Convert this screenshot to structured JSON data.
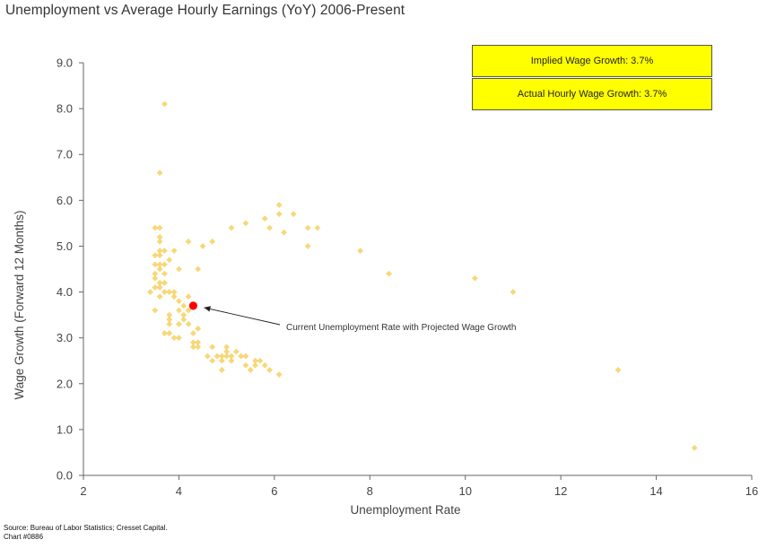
{
  "chart_data": {
    "type": "scatter",
    "title": "Unemployment vs Average Hourly Earnings (YoY) 2006-Present",
    "xlabel": "Unemployment Rate",
    "ylabel": "Wage Growth (Forward 12 Months)",
    "xlim": [
      2,
      16
    ],
    "ylim": [
      0,
      9
    ],
    "xticks": [
      2,
      4,
      6,
      8,
      10,
      12,
      14,
      16
    ],
    "yticks": [
      "0.0",
      "1.0",
      "2.0",
      "3.0",
      "4.0",
      "5.0",
      "6.0",
      "7.0",
      "8.0",
      "9.0"
    ],
    "grid": false,
    "series": [
      {
        "color": "#f5c842",
        "marker": "diamond",
        "points": [
          [
            3.7,
            8.1
          ],
          [
            3.6,
            6.6
          ],
          [
            3.5,
            5.4
          ],
          [
            3.6,
            5.4
          ],
          [
            3.6,
            5.2
          ],
          [
            3.6,
            5.1
          ],
          [
            3.6,
            4.9
          ],
          [
            3.5,
            4.8
          ],
          [
            3.6,
            4.8
          ],
          [
            3.5,
            4.6
          ],
          [
            3.6,
            4.6
          ],
          [
            3.7,
            4.6
          ],
          [
            3.5,
            4.4
          ],
          [
            3.6,
            4.5
          ],
          [
            3.7,
            4.4
          ],
          [
            3.8,
            4.7
          ],
          [
            3.5,
            4.3
          ],
          [
            3.6,
            4.2
          ],
          [
            3.5,
            4.1
          ],
          [
            3.6,
            4.1
          ],
          [
            3.4,
            4.0
          ],
          [
            3.7,
            4.2
          ],
          [
            3.7,
            4.0
          ],
          [
            3.8,
            4.0
          ],
          [
            3.6,
            3.9
          ],
          [
            3.5,
            3.6
          ],
          [
            3.9,
            4.0
          ],
          [
            3.9,
            3.9
          ],
          [
            4.0,
            3.8
          ],
          [
            4.1,
            3.7
          ],
          [
            4.0,
            3.6
          ],
          [
            4.1,
            3.5
          ],
          [
            4.2,
            3.6
          ],
          [
            4.1,
            3.4
          ],
          [
            4.2,
            3.3
          ],
          [
            3.8,
            3.5
          ],
          [
            3.8,
            3.4
          ],
          [
            3.8,
            3.3
          ],
          [
            4.0,
            3.3
          ],
          [
            3.9,
            3.0
          ],
          [
            4.0,
            3.0
          ],
          [
            3.7,
            3.1
          ],
          [
            3.8,
            3.1
          ],
          [
            4.3,
            3.1
          ],
          [
            4.4,
            3.2
          ],
          [
            4.3,
            2.9
          ],
          [
            4.4,
            2.9
          ],
          [
            4.3,
            2.8
          ],
          [
            4.4,
            2.8
          ],
          [
            3.9,
            4.9
          ],
          [
            3.7,
            4.9
          ],
          [
            4.0,
            4.5
          ],
          [
            4.2,
            5.1
          ],
          [
            4.2,
            3.9
          ],
          [
            4.4,
            4.5
          ],
          [
            4.5,
            5.0
          ],
          [
            4.7,
            5.1
          ],
          [
            4.6,
            2.6
          ],
          [
            4.7,
            2.8
          ],
          [
            4.7,
            2.5
          ],
          [
            4.8,
            2.6
          ],
          [
            4.9,
            2.6
          ],
          [
            4.9,
            2.5
          ],
          [
            5.0,
            2.8
          ],
          [
            5.0,
            2.7
          ],
          [
            5.0,
            2.6
          ],
          [
            5.1,
            2.6
          ],
          [
            5.1,
            2.5
          ],
          [
            5.2,
            2.7
          ],
          [
            5.3,
            2.6
          ],
          [
            5.4,
            2.6
          ],
          [
            5.4,
            2.4
          ],
          [
            5.5,
            2.3
          ],
          [
            5.6,
            2.4
          ],
          [
            5.6,
            2.5
          ],
          [
            5.7,
            2.5
          ],
          [
            5.8,
            2.4
          ],
          [
            5.9,
            2.3
          ],
          [
            4.9,
            2.3
          ],
          [
            6.1,
            2.2
          ],
          [
            5.1,
            5.4
          ],
          [
            5.4,
            5.5
          ],
          [
            5.8,
            5.6
          ],
          [
            5.9,
            5.4
          ],
          [
            6.1,
            5.9
          ],
          [
            6.1,
            5.7
          ],
          [
            6.2,
            5.3
          ],
          [
            6.4,
            5.7
          ],
          [
            6.7,
            5.4
          ],
          [
            6.7,
            5.0
          ],
          [
            6.9,
            5.4
          ],
          [
            7.8,
            4.9
          ],
          [
            8.4,
            4.4
          ],
          [
            10.2,
            4.3
          ],
          [
            11.0,
            4.0
          ],
          [
            13.2,
            2.3
          ],
          [
            14.8,
            0.6
          ]
        ]
      }
    ],
    "highlight": {
      "x": 4.3,
      "y": 3.7,
      "color": "#ff0000"
    },
    "annotation": "Current Unemployment Rate with Projected Wage Growth"
  },
  "callouts": {
    "implied": "Implied Wage Growth: 3.7%",
    "actual": "Actual Hourly Wage Growth: 3.7%"
  },
  "source": {
    "line1": "Source: Bureau of Labor Statistics; Cresset Capital.",
    "line2": "Chart #0886"
  }
}
